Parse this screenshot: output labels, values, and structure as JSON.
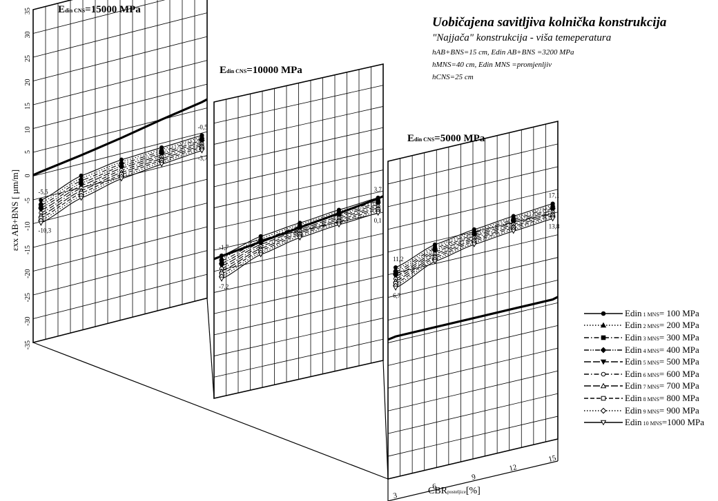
{
  "heading": {
    "title": "Uobičajena savitljiva kolnička konstrukcija",
    "subtitle": "\"Najjača\" konstrukcija - viša temeperatura",
    "params": [
      "hAB+BNS=15 cm, Edin AB+BNS =3200 MPa",
      "hMNS=40 cm, Edin MNS =promjenljiv",
      "hCNS=25 cm"
    ]
  },
  "axes": {
    "ylabel": "εxx AB+BNS [ µm/m]",
    "xlabel_main": "CBR",
    "xlabel_sub": "posteljice",
    "xlabel_unit": "[%]"
  },
  "chart_data": {
    "type": "line",
    "x": [
      3,
      6,
      9,
      12,
      15
    ],
    "x_ticks": [
      3,
      6,
      9,
      12,
      15
    ],
    "ylim": [
      -35,
      35
    ],
    "y_ticks": [
      35,
      30,
      25,
      20,
      15,
      10,
      5,
      0,
      -5,
      -10,
      -15,
      -20,
      -25,
      -30,
      -35
    ],
    "grid": true,
    "legend_position": "right",
    "panels": [
      {
        "title_main": "E",
        "title_sub": "din CNS",
        "title_value": "=15000 MPa",
        "upper": [
          -5.5,
          -2.5,
          -1.3,
          -0.9,
          -0.5
        ],
        "lower": [
          -10.3,
          -7.2,
          -5.3,
          -4.4,
          -3.7
        ],
        "reference_line": [
          0.5,
          1.8,
          3.3,
          5.0,
          6.5
        ],
        "labels": {
          "start_top": "-5,5",
          "start_bottom": "-10,3",
          "end_top": "-0,5",
          "end_bottom": "-3,7"
        }
      },
      {
        "title_main": "E",
        "title_sub": "din CNS",
        "title_value": "=10000 MPa",
        "upper": [
          -1.7,
          0.8,
          1.9,
          2.9,
          3.7
        ],
        "lower": [
          -7.2,
          -3.5,
          -1.6,
          -0.6,
          0.1
        ],
        "reference_line": [
          -1.8,
          -0.5,
          0.8,
          2.1,
          3.5
        ],
        "labels": {
          "start_top": "-1,7",
          "start_bottom": "-7,2",
          "end_top": "3,7",
          "end_bottom": "0,1"
        }
      },
      {
        "title_main": "E",
        "title_sub": "din CNS",
        "title_value": "=5000 MPa",
        "upper": [
          11.2,
          14.2,
          15.5,
          16.4,
          17.1
        ],
        "lower": [
          6.7,
          10.5,
          12.2,
          13.1,
          13.8
        ],
        "reference_line": [
          -4.0,
          -4.0,
          -4.0,
          -4.0,
          -4.0
        ],
        "labels": {
          "start_top": "11,2",
          "start_bottom": "6,7",
          "end_top": "17,1",
          "end_bottom": "13,8"
        }
      }
    ],
    "series": [
      {
        "prefix": "Edin",
        "num": "1",
        "sub": "MNS",
        "value": "= 100 MPa",
        "marker": "circle-filled",
        "dash": "solid"
      },
      {
        "prefix": "Edin",
        "num": "2",
        "sub": "MNS",
        "value": "= 200 MPa",
        "marker": "triangle-filled",
        "dash": "dot"
      },
      {
        "prefix": "Edin",
        "num": "3",
        "sub": "MNS",
        "value": "= 300 MPa",
        "marker": "square-filled",
        "dash": "dashdot"
      },
      {
        "prefix": "Edin",
        "num": "4",
        "sub": "MNS",
        "value": "= 400 MPa",
        "marker": "diamond-filled",
        "dash": "dashdotdot"
      },
      {
        "prefix": "Edin",
        "num": "5",
        "sub": "MNS",
        "value": "= 500 MPa",
        "marker": "triangle-down-filled",
        "dash": "longdash"
      },
      {
        "prefix": "Edin",
        "num": "6",
        "sub": "MNS",
        "value": "= 600 MPa",
        "marker": "circle-open",
        "dash": "dashdot"
      },
      {
        "prefix": "Edin",
        "num": "7",
        "sub": "MNS",
        "value": "= 700 MPa",
        "marker": "triangle-open",
        "dash": "longdash"
      },
      {
        "prefix": "Edin",
        "num": "8",
        "sub": "MNS",
        "value": "= 800 MPa",
        "marker": "square-open",
        "dash": "dash"
      },
      {
        "prefix": "Edin",
        "num": "9",
        "sub": "MNS",
        "value": "= 900 MPa",
        "marker": "diamond-open",
        "dash": "dot"
      },
      {
        "prefix": "Edin",
        "num": "10",
        "sub": "MNS",
        "value": "=1000 MPa",
        "marker": "triangle-down-open",
        "dash": "solid"
      }
    ]
  }
}
